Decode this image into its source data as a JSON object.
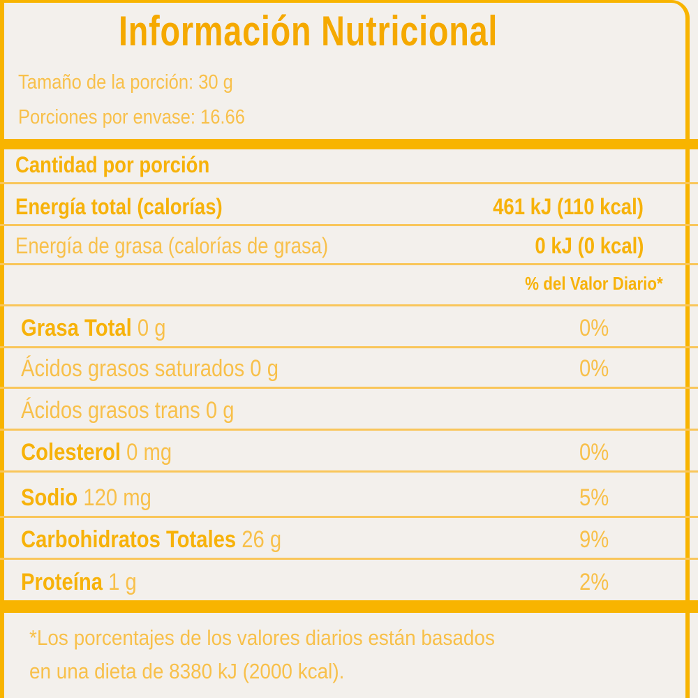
{
  "title": "Información Nutricional",
  "serving_size": "Tamaño de la porción: 30 g",
  "servings_per_container": "Porciones por envase: 16.66",
  "amount_per_serving": "Cantidad por porción",
  "energy_total": {
    "label": "Energía total (calorías)",
    "value": "461 kJ (110 kcal)"
  },
  "energy_fat": {
    "label": "Energía de grasa (calorías de grasa)",
    "value": "0 kJ (0 kcal)"
  },
  "daily_value_header": "% del Valor Diario*",
  "nutrients": [
    {
      "name": "Grasa Total",
      "amount": "0 g",
      "pct": "0%"
    },
    {
      "name": "Ácidos grasos saturados 0 g",
      "amount": "",
      "pct": "0%"
    },
    {
      "name": "Ácidos grasos trans 0 g",
      "amount": "",
      "pct": ""
    },
    {
      "name": "Colesterol",
      "amount": "0 mg",
      "pct": "0%"
    },
    {
      "name": "Sodio",
      "amount": "120 mg",
      "pct": "5%"
    },
    {
      "name": "Carbohidratos Totales",
      "amount": "26 g",
      "pct": "9%"
    },
    {
      "name": "Proteína",
      "amount": "1 g",
      "pct": "2%"
    }
  ],
  "footnote": [
    "*Los porcentajes de los valores diarios están basados",
    "en una dieta de 8380 kJ (2000 kcal)."
  ]
}
